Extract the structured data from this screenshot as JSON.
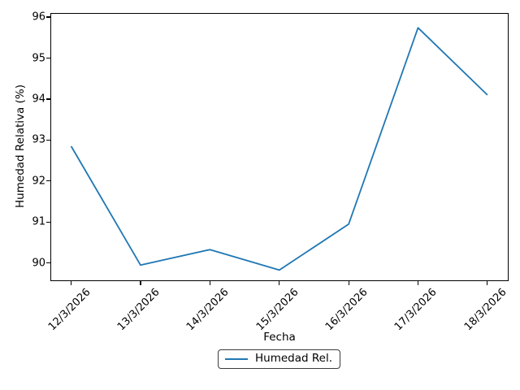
{
  "chart_data": {
    "type": "line",
    "title": "",
    "xlabel": "Fecha",
    "ylabel": "Humedad Relativa (%)",
    "categories": [
      "12/3/2026",
      "13/3/2026",
      "14/3/2026",
      "15/3/2026",
      "16/3/2026",
      "17/3/2026",
      "18/3/2026"
    ],
    "series": [
      {
        "name": "Humedad Rel.",
        "values": [
          92.85,
          89.95,
          90.33,
          89.83,
          90.95,
          95.74,
          94.1
        ],
        "color": "#1f77b4"
      }
    ],
    "yticks": [
      90,
      91,
      92,
      93,
      94,
      95,
      96
    ],
    "ylim": [
      89.58,
      96.1
    ],
    "xlim_index": [
      -0.3,
      6.3
    ],
    "grid": false,
    "legend_position": "below-center-outside"
  },
  "colors": {
    "line": "#1f77b4",
    "text": "#000000",
    "spine": "#000000",
    "legend_border": "#3c3c3c",
    "background": "#ffffff"
  }
}
